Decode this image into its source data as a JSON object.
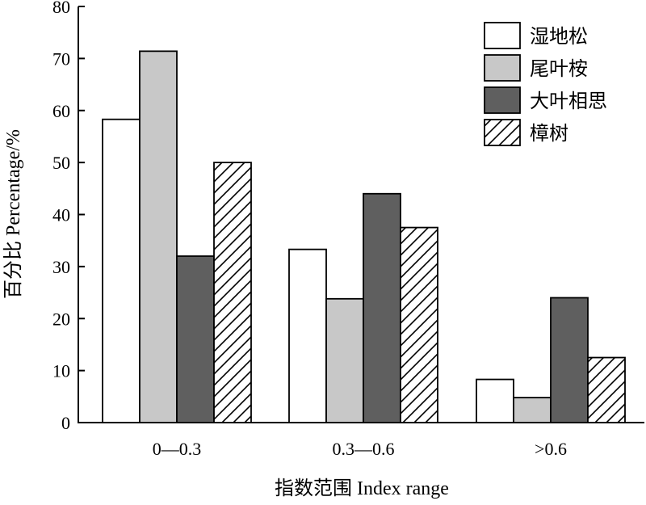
{
  "chart_data": {
    "type": "bar",
    "categories": [
      "0—0.3",
      "0.3—0.6",
      ">0.6"
    ],
    "series": [
      {
        "name": "湿地松",
        "values": [
          58.3,
          33.3,
          8.3
        ],
        "fill": "#ffffff",
        "pattern": "solid"
      },
      {
        "name": "尾叶桉",
        "values": [
          71.4,
          23.8,
          4.8
        ],
        "fill": "#c8c8c8",
        "pattern": "solid"
      },
      {
        "name": "大叶相思",
        "values": [
          32.0,
          44.0,
          24.0
        ],
        "fill": "#5f5f5f",
        "pattern": "solid"
      },
      {
        "name": "樟树",
        "values": [
          50.0,
          37.5,
          12.5
        ],
        "fill": "#ffffff",
        "pattern": "hatch"
      }
    ],
    "xlabel": "指数范围 Index range",
    "ylabel": "百分比 Percentage/%",
    "ylim": [
      0,
      80
    ],
    "yticks": [
      0,
      10,
      20,
      30,
      40,
      50,
      60,
      70,
      80
    ],
    "grid": false,
    "legend": "top-right"
  }
}
